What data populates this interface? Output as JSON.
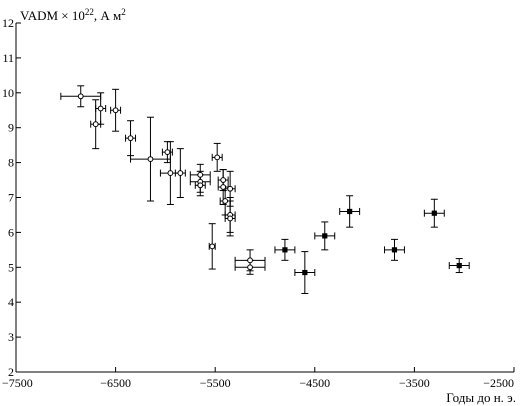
{
  "chart_data": {
    "type": "scatter",
    "title": "",
    "ylabel_text": "VADM × 10",
    "ylabel_exp": "22",
    "ylabel_unit": ", А м",
    "ylabel_unit_exp": "2",
    "xlabel": "Годы до н. э.",
    "xlim": [
      -7500,
      -2500
    ],
    "ylim": [
      2,
      12
    ],
    "xticks": [
      -7500,
      -6500,
      -5500,
      -4500,
      -3500,
      -2500
    ],
    "xtick_labels": [
      "−7500",
      "−6500",
      "−5500",
      "−4500",
      "−3500",
      "−2500"
    ],
    "yticks": [
      2,
      3,
      4,
      5,
      6,
      7,
      8,
      9,
      10,
      11,
      12
    ],
    "ytick_labels": [
      "2",
      "3",
      "4",
      "5",
      "6",
      "7",
      "8",
      "9",
      "10",
      "11",
      "12"
    ],
    "grid": false,
    "series": [
      {
        "marker": "open-circle",
        "points": [
          {
            "x": -6850,
            "y": 9.9,
            "xerr": 200,
            "yerr": 0.3
          },
          {
            "x": -6700,
            "y": 9.1,
            "xerr": 50,
            "yerr": 0.7
          },
          {
            "x": -6650,
            "y": 9.55,
            "xerr": 50,
            "yerr": 0.45
          },
          {
            "x": -6500,
            "y": 9.5,
            "xerr": 50,
            "yerr": 0.6
          },
          {
            "x": -6350,
            "y": 8.7,
            "xerr": 50,
            "yerr": 0.5
          },
          {
            "x": -6150,
            "y": 8.1,
            "xerr": 200,
            "yerr": 1.2
          },
          {
            "x": -5980,
            "y": 8.3,
            "xerr": 50,
            "yerr": 0.3
          },
          {
            "x": -5950,
            "y": 7.7,
            "xerr": 100,
            "yerr": 0.9
          },
          {
            "x": -5850,
            "y": 7.7,
            "xerr": 50,
            "yerr": 0.7
          },
          {
            "x": -5650,
            "y": 7.65,
            "xerr": 100,
            "yerr": 0.3
          },
          {
            "x": -5650,
            "y": 7.45,
            "xerr": 100,
            "yerr": 0.3
          },
          {
            "x": -5650,
            "y": 7.35,
            "xerr": 50,
            "yerr": 0.3
          },
          {
            "x": -5530,
            "y": 5.6,
            "xerr": 30,
            "yerr": 0.65
          },
          {
            "x": -5480,
            "y": 8.15,
            "xerr": 50,
            "yerr": 0.4
          },
          {
            "x": -5420,
            "y": 7.5,
            "xerr": 50,
            "yerr": 0.3
          },
          {
            "x": -5420,
            "y": 7.3,
            "xerr": 50,
            "yerr": 0.5
          },
          {
            "x": -5400,
            "y": 6.9,
            "xerr": 50,
            "yerr": 0.4
          },
          {
            "x": -5350,
            "y": 7.25,
            "xerr": 50,
            "yerr": 0.5
          },
          {
            "x": -5350,
            "y": 6.5,
            "xerr": 50,
            "yerr": 0.5
          },
          {
            "x": -5350,
            "y": 6.4,
            "xerr": 50,
            "yerr": 0.5
          },
          {
            "x": -5150,
            "y": 5.2,
            "xerr": 150,
            "yerr": 0.3
          },
          {
            "x": -5150,
            "y": 5.0,
            "xerr": 150,
            "yerr": 0.2
          }
        ]
      },
      {
        "marker": "filled-square",
        "points": [
          {
            "x": -4800,
            "y": 5.5,
            "xerr": 100,
            "yerr": 0.3
          },
          {
            "x": -4600,
            "y": 4.85,
            "xerr": 100,
            "yerr": 0.6
          },
          {
            "x": -4400,
            "y": 5.9,
            "xerr": 100,
            "yerr": 0.4
          },
          {
            "x": -4150,
            "y": 6.6,
            "xerr": 100,
            "yerr": 0.45
          },
          {
            "x": -3700,
            "y": 5.5,
            "xerr": 100,
            "yerr": 0.3
          },
          {
            "x": -3300,
            "y": 6.55,
            "xerr": 100,
            "yerr": 0.4
          },
          {
            "x": -3050,
            "y": 5.05,
            "xerr": 100,
            "yerr": 0.2
          }
        ]
      }
    ]
  }
}
